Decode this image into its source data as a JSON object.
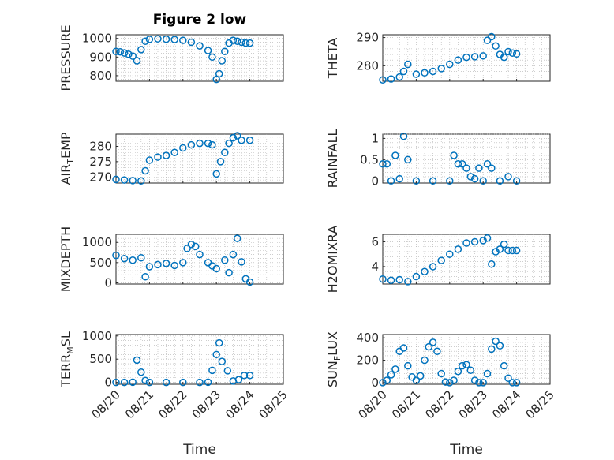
{
  "figure": {
    "title": "Figure 2 low",
    "xlabel": "Time"
  },
  "chart_data": [
    {
      "type": "scatter",
      "title": "Figure 2 low",
      "ylabel": "PRESSURE",
      "yticks": [
        800,
        900,
        1000
      ],
      "ylim": [
        770,
        1020
      ],
      "x": [
        "08/20 00:00",
        "08/20 03:00",
        "08/20 06:00",
        "08/20 09:00",
        "08/20 12:00",
        "08/20 15:00",
        "08/20 18:00",
        "08/20 21:00",
        "08/21 00:00",
        "08/21 06:00",
        "08/21 12:00",
        "08/21 18:00",
        "08/22 00:00",
        "08/22 06:00",
        "08/22 12:00",
        "08/22 18:00",
        "08/22 21:00",
        "08/23 00:00",
        "08/23 02:00",
        "08/23 04:00",
        "08/23 06:00",
        "08/23 09:00",
        "08/23 12:00",
        "08/23 15:00",
        "08/23 18:00",
        "08/23 21:00",
        "08/24 00:00"
      ],
      "values": [
        930,
        928,
        922,
        915,
        905,
        880,
        940,
        985,
        995,
        998,
        996,
        994,
        990,
        980,
        960,
        935,
        900,
        780,
        810,
        880,
        930,
        975,
        990,
        985,
        980,
        975,
        975
      ]
    },
    {
      "type": "scatter",
      "ylabel": "THETA",
      "yticks": [
        280,
        290
      ],
      "ylim": [
        274.5,
        291
      ],
      "x": [
        "08/20 00:00",
        "08/20 06:00",
        "08/20 12:00",
        "08/20 15:00",
        "08/20 18:00",
        "08/21 00:00",
        "08/21 06:00",
        "08/21 12:00",
        "08/21 18:00",
        "08/22 00:00",
        "08/22 06:00",
        "08/22 12:00",
        "08/22 18:00",
        "08/23 00:00",
        "08/23 03:00",
        "08/23 06:00",
        "08/23 09:00",
        "08/23 12:00",
        "08/23 15:00",
        "08/23 18:00",
        "08/23 21:00",
        "08/24 00:00"
      ],
      "values": [
        275,
        275.3,
        276,
        278,
        280.5,
        277,
        277.5,
        278,
        279,
        280.5,
        282,
        283,
        283.2,
        283.5,
        289,
        290.3,
        287,
        284,
        283,
        285,
        284.5,
        284.2
      ]
    },
    {
      "type": "scatter",
      "ylabel": "AIR_TEMP",
      "yticks": [
        270,
        275,
        280
      ],
      "ylim": [
        268,
        284
      ],
      "x": [
        "08/20 00:00",
        "08/20 06:00",
        "08/20 12:00",
        "08/20 18:00",
        "08/20 21:00",
        "08/21 00:00",
        "08/21 06:00",
        "08/21 12:00",
        "08/21 18:00",
        "08/22 00:00",
        "08/22 06:00",
        "08/22 12:00",
        "08/22 18:00",
        "08/22 21:00",
        "08/23 00:00",
        "08/23 03:00",
        "08/23 06:00",
        "08/23 09:00",
        "08/23 12:00",
        "08/23 15:00",
        "08/23 18:00",
        "08/24 00:00"
      ],
      "values": [
        269.2,
        269,
        268.8,
        268.7,
        272,
        275.5,
        276.5,
        277,
        278,
        279.5,
        280.5,
        281,
        281,
        280.5,
        271,
        275,
        278,
        281,
        282.8,
        283.5,
        282,
        282
      ]
    },
    {
      "type": "scatter",
      "ylabel": "RAINFALL",
      "yticks": [
        0,
        0.5,
        1
      ],
      "ylim": [
        -0.05,
        1.1
      ],
      "x": [
        "08/20 00:00",
        "08/20 03:00",
        "08/20 06:00",
        "08/20 09:00",
        "08/20 12:00",
        "08/20 15:00",
        "08/20 18:00",
        "08/21 00:00",
        "08/21 12:00",
        "08/22 00:00",
        "08/22 03:00",
        "08/22 06:00",
        "08/22 09:00",
        "08/22 12:00",
        "08/22 15:00",
        "08/22 18:00",
        "08/22 21:00",
        "08/23 00:00",
        "08/23 03:00",
        "08/23 06:00",
        "08/23 12:00",
        "08/23 18:00",
        "08/24 00:00"
      ],
      "values": [
        0.4,
        0.4,
        0,
        0.6,
        0.05,
        1.05,
        0.5,
        0,
        0,
        0,
        0.6,
        0.4,
        0.4,
        0.3,
        0.1,
        0.05,
        0.3,
        0,
        0.4,
        0.3,
        0,
        0.1,
        0
      ]
    },
    {
      "type": "scatter",
      "ylabel": "MIXDEPTH",
      "yticks": [
        0,
        500,
        1000
      ],
      "ylim": [
        -30,
        1200
      ],
      "x": [
        "08/20 00:00",
        "08/20 06:00",
        "08/20 12:00",
        "08/20 18:00",
        "08/20 21:00",
        "08/21 00:00",
        "08/21 06:00",
        "08/21 12:00",
        "08/21 18:00",
        "08/22 00:00",
        "08/22 03:00",
        "08/22 06:00",
        "08/22 09:00",
        "08/22 12:00",
        "08/22 18:00",
        "08/22 21:00",
        "08/23 00:00",
        "08/23 06:00",
        "08/23 09:00",
        "08/23 12:00",
        "08/23 15:00",
        "08/23 18:00",
        "08/23 21:00",
        "08/24 00:00"
      ],
      "values": [
        680,
        600,
        560,
        620,
        150,
        400,
        450,
        480,
        430,
        500,
        850,
        950,
        900,
        700,
        500,
        420,
        350,
        560,
        250,
        700,
        1100,
        520,
        100,
        20
      ]
    },
    {
      "type": "scatter",
      "ylabel": "H2OMIXRA",
      "yticks": [
        4,
        6
      ],
      "ylim": [
        2.6,
        6.6
      ],
      "x": [
        "08/20 00:00",
        "08/20 06:00",
        "08/20 12:00",
        "08/20 18:00",
        "08/21 00:00",
        "08/21 06:00",
        "08/21 12:00",
        "08/21 18:00",
        "08/22 00:00",
        "08/22 06:00",
        "08/22 12:00",
        "08/22 18:00",
        "08/23 00:00",
        "08/23 03:00",
        "08/23 06:00",
        "08/23 09:00",
        "08/23 12:00",
        "08/23 15:00",
        "08/23 18:00",
        "08/23 21:00",
        "08/24 00:00"
      ],
      "values": [
        3,
        2.9,
        2.95,
        2.8,
        3.2,
        3.6,
        4,
        4.5,
        5,
        5.4,
        5.9,
        6,
        6.1,
        6.3,
        4.2,
        5.2,
        5.4,
        5.8,
        5.3,
        5.3,
        5.3
      ]
    },
    {
      "type": "scatter",
      "ylabel": "TERR_MSL",
      "yticks": [
        0,
        500,
        1000
      ],
      "ylim": [
        -40,
        1030
      ],
      "x": [
        "08/20 00:00",
        "08/20 06:00",
        "08/20 12:00",
        "08/20 15:00",
        "08/20 18:00",
        "08/20 21:00",
        "08/21 00:00",
        "08/21 12:00",
        "08/22 00:00",
        "08/22 12:00",
        "08/22 18:00",
        "08/22 21:00",
        "08/23 00:00",
        "08/23 02:00",
        "08/23 04:00",
        "08/23 08:00",
        "08/23 12:00",
        "08/23 16:00",
        "08/23 20:00",
        "08/24 00:00"
      ],
      "values": [
        0,
        0,
        5,
        480,
        220,
        40,
        0,
        0,
        0,
        0,
        5,
        260,
        600,
        850,
        450,
        250,
        30,
        60,
        150,
        150
      ]
    },
    {
      "type": "scatter",
      "ylabel": "SUN_FLUX",
      "yticks": [
        0,
        200,
        400
      ],
      "ylim": [
        -15,
        430
      ],
      "x": [
        "08/20 00:00",
        "08/20 03:00",
        "08/20 06:00",
        "08/20 09:00",
        "08/20 12:00",
        "08/20 15:00",
        "08/20 18:00",
        "08/20 21:00",
        "08/21 00:00",
        "08/21 03:00",
        "08/21 06:00",
        "08/21 09:00",
        "08/21 12:00",
        "08/21 15:00",
        "08/21 18:00",
        "08/21 21:00",
        "08/22 00:00",
        "08/22 03:00",
        "08/22 06:00",
        "08/22 09:00",
        "08/22 12:00",
        "08/22 15:00",
        "08/22 18:00",
        "08/22 21:00",
        "08/23 00:00",
        "08/23 03:00",
        "08/23 06:00",
        "08/23 09:00",
        "08/23 12:00",
        "08/23 15:00",
        "08/23 18:00",
        "08/23 21:00",
        "08/24 00:00"
      ],
      "values": [
        0,
        20,
        70,
        120,
        280,
        310,
        150,
        50,
        20,
        60,
        200,
        320,
        360,
        280,
        80,
        5,
        0,
        20,
        100,
        150,
        160,
        110,
        20,
        0,
        0,
        80,
        300,
        370,
        330,
        150,
        40,
        0,
        0
      ]
    }
  ],
  "x_axis": {
    "xlim": [
      "08/20 00:00",
      "08/25 00:00"
    ],
    "ticks": [
      "08/20",
      "08/21",
      "08/22",
      "08/23",
      "08/24",
      "08/25"
    ]
  }
}
